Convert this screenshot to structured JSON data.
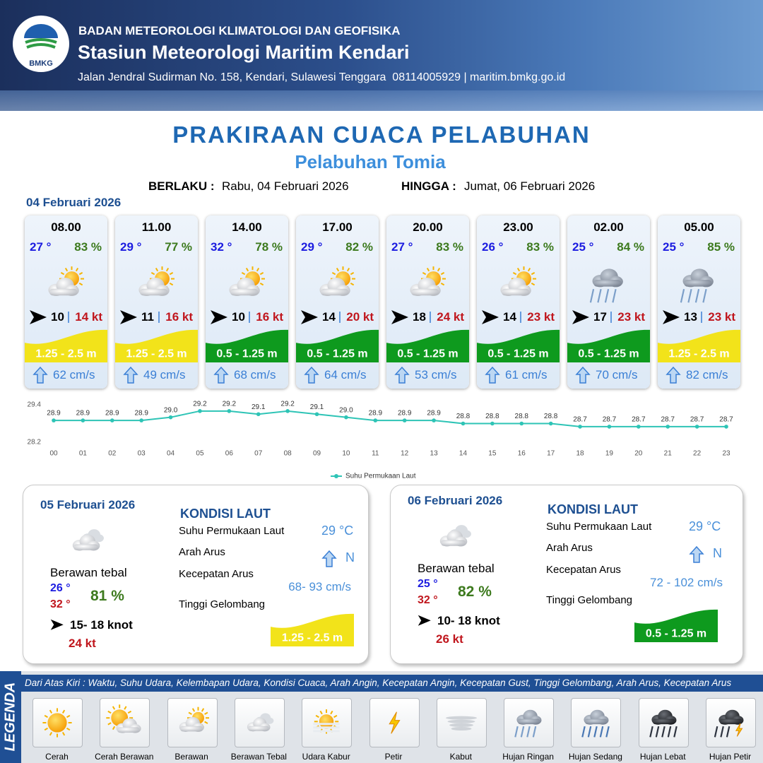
{
  "header": {
    "logo": "BMKG",
    "organization": "BADAN METEOROLOGI KLIMATOLOGI DAN GEOFISIKA",
    "station": "Stasiun Meteorologi Maritim Kendari",
    "address": "Jalan Jendral Sudirman No. 158, Kendari, Sulawesi Tenggara  08114005929 | maritim.bmkg.go.id"
  },
  "title": "PRAKIRAAN CUACA PELABUHAN",
  "subtitle": "Pelabuhan Tomia",
  "validity": {
    "from_label": "BERLAKU :",
    "from": "Rabu, 04 Februari 2026",
    "to_label": "HINGGA :",
    "to": "Jumat, 06 Februari 2026"
  },
  "day1": {
    "date": "04 Februari 2026"
  },
  "forecast": [
    {
      "time": "08.00",
      "temp": "27 °",
      "humidity": "83 %",
      "wind": "10",
      "gust": "14 kt",
      "wave": "1.25 - 2.5 m",
      "wave_color": "#f2e31a",
      "current": "62 cm/s"
    },
    {
      "time": "11.00",
      "temp": "29 °",
      "humidity": "77 %",
      "wind": "11",
      "gust": "16 kt",
      "wave": "1.25 - 2.5 m",
      "wave_color": "#f2e31a",
      "current": "49 cm/s"
    },
    {
      "time": "14.00",
      "temp": "32 °",
      "humidity": "78 %",
      "wind": "10",
      "gust": "16 kt",
      "wave": "0.5 - 1.25 m",
      "wave_color": "#0e9a1e",
      "current": "68 cm/s"
    },
    {
      "time": "17.00",
      "temp": "29 °",
      "humidity": "82 %",
      "wind": "14",
      "gust": "20 kt",
      "wave": "0.5 - 1.25 m",
      "wave_color": "#0e9a1e",
      "current": "64 cm/s"
    },
    {
      "time": "20.00",
      "temp": "27 °",
      "humidity": "83 %",
      "wind": "18",
      "gust": "24 kt",
      "wave": "0.5 - 1.25 m",
      "wave_color": "#0e9a1e",
      "current": "53 cm/s"
    },
    {
      "time": "23.00",
      "temp": "26 °",
      "humidity": "83 %",
      "wind": "14",
      "gust": "23 kt",
      "wave": "0.5 - 1.25 m",
      "wave_color": "#0e9a1e",
      "current": "61 cm/s"
    },
    {
      "time": "02.00",
      "temp": "25 °",
      "humidity": "84 %",
      "wind": "17",
      "gust": "23 kt",
      "wave": "0.5 - 1.25 m",
      "wave_color": "#0e9a1e",
      "current": "70 cm/s"
    },
    {
      "time": "05.00",
      "temp": "25 °",
      "humidity": "85 %",
      "wind": "13",
      "gust": "23 kt",
      "wave": "1.25 - 2.5 m",
      "wave_color": "#f2e31a",
      "current": "82 cm/s"
    }
  ],
  "chart_data": {
    "type": "line",
    "categories": [
      "00",
      "01",
      "02",
      "03",
      "04",
      "05",
      "06",
      "07",
      "08",
      "09",
      "10",
      "11",
      "12",
      "13",
      "14",
      "15",
      "16",
      "17",
      "18",
      "19",
      "20",
      "21",
      "22",
      "23"
    ],
    "series": [
      {
        "name": "Suhu Permukaan Laut",
        "color": "#2ec4b6",
        "values": [
          28.9,
          28.9,
          28.9,
          28.9,
          29.0,
          29.2,
          29.2,
          29.1,
          29.2,
          29.1,
          29.0,
          28.9,
          28.9,
          28.9,
          28.8,
          28.8,
          28.8,
          28.8,
          28.7,
          28.7,
          28.7,
          28.7,
          28.7,
          28.7
        ],
        "value_labels": [
          "28.9",
          "28.9",
          "28.9",
          "28.9",
          "29.0",
          "29.2",
          "29.2",
          "29.1",
          "29.2",
          "29.1",
          "29.0",
          "28.9",
          "28.9",
          "28.9",
          "28.8",
          "28.8",
          "28.8",
          "28.8",
          "28.7",
          "28.7",
          "28.7",
          "28.7",
          "28.7",
          "28.7"
        ]
      }
    ],
    "ylim": [
      28.2,
      29.4
    ],
    "yticks": [
      28.2,
      29.4
    ],
    "legend": "bottom"
  },
  "days": [
    {
      "date": "05 Februari 2026",
      "condition": "Berawan tebal",
      "temp_min": "26 °",
      "temp_max": "32 °",
      "humidity": "81 %",
      "wind": "15- 18 knot",
      "gust": "24 kt",
      "sea": {
        "title": "KONDISI LAUT",
        "sst_label": "Suhu Permukaan Laut",
        "sst": "29 °C",
        "dir_label": "Arah Arus",
        "dir": "N",
        "speed_label": "Kecepatan Arus",
        "speed": "68- 93 cm/s",
        "wave_label": "Tinggi Gelombang",
        "wave": "1.25 - 2.5 m",
        "wave_color": "#f2e31a"
      }
    },
    {
      "date": "06 Februari 2026",
      "condition": "Berawan tebal",
      "temp_min": "25 °",
      "temp_max": "32 °",
      "humidity": "82 %",
      "wind": "10- 18 knot",
      "gust": "26 kt",
      "sea": {
        "title": "KONDISI LAUT",
        "sst_label": "Suhu Permukaan Laut",
        "sst": "29 °C",
        "dir_label": "Arah Arus",
        "dir": "N",
        "speed_label": "Kecepatan Arus",
        "speed": "72 - 102 cm/s",
        "wave_label": "Tinggi Gelombang",
        "wave": "0.5 - 1.25 m",
        "wave_color": "#0e9a1e"
      }
    }
  ],
  "legend": {
    "title": "LEGENDA",
    "description": "Dari Atas Kiri : Waktu, Suhu Udara, Kelembapan Udara, Kondisi Cuaca, Arah Angin, Kecepatan Angin, Kecepatan Gust, Tinggi Gelombang, Arah Arus, Kecepatan Arus",
    "items": [
      "Cerah",
      "Cerah Berawan",
      "Berawan",
      "Berawan Tebal",
      "Udara Kabur",
      "Petir",
      "Kabut",
      "Hujan Ringan",
      "Hujan Sedang",
      "Hujan Lebat",
      "Hujan Petir"
    ]
  }
}
